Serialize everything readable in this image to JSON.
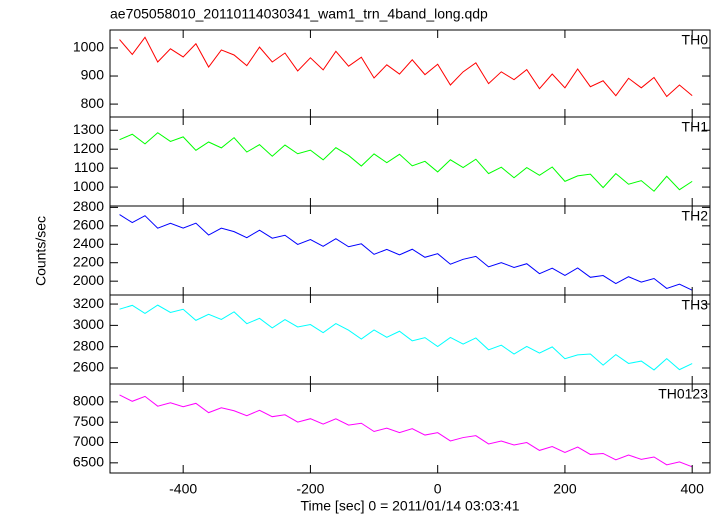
{
  "chart_data": [
    {
      "type": "line",
      "title": "ae705058010_20110114030341_wam1_trn_4band_long.qdp",
      "x": [
        -500,
        -480,
        -460,
        -440,
        -420,
        -400,
        -380,
        -360,
        -340,
        -320,
        -300,
        -280,
        -260,
        -240,
        -220,
        -200,
        -180,
        -160,
        -140,
        -120,
        -100,
        -80,
        -60,
        -40,
        -20,
        0,
        20,
        40,
        60,
        80,
        100,
        120,
        140,
        160,
        180,
        200,
        220,
        240,
        260,
        280,
        300,
        320,
        340,
        360,
        380,
        400
      ],
      "series": [
        {
          "name": "TH0",
          "color": "#ff0000",
          "values": [
            1030,
            977,
            1038,
            950,
            997,
            968,
            1015,
            932,
            993,
            975,
            937,
            1003,
            950,
            982,
            918,
            965,
            922,
            988,
            935,
            967,
            893,
            940,
            907,
            958,
            905,
            942,
            868,
            915,
            947,
            873,
            915,
            887,
            923,
            855,
            907,
            858,
            925,
            862,
            883,
            830,
            892,
            858,
            895,
            827,
            868,
            830
          ]
        }
      ],
      "xlim": [
        -515,
        428
      ],
      "xticks": [
        -400,
        -200,
        0,
        200,
        400
      ],
      "ylim": [
        754,
        1064
      ],
      "yticks": [
        800,
        900,
        1000
      ]
    },
    {
      "type": "line",
      "x": [
        -500,
        -480,
        -460,
        -440,
        -420,
        -400,
        -380,
        -360,
        -340,
        -320,
        -300,
        -280,
        -260,
        -240,
        -220,
        -200,
        -180,
        -160,
        -140,
        -120,
        -100,
        -80,
        -60,
        -40,
        -20,
        0,
        20,
        40,
        60,
        80,
        100,
        120,
        140,
        160,
        180,
        200,
        220,
        240,
        260,
        280,
        300,
        320,
        340,
        360,
        380,
        400
      ],
      "series": [
        {
          "name": "TH1",
          "color": "#00ff00",
          "values": [
            1250,
            1279,
            1228,
            1287,
            1241,
            1265,
            1194,
            1238,
            1207,
            1261,
            1185,
            1224,
            1163,
            1222,
            1176,
            1195,
            1144,
            1208,
            1167,
            1111,
            1175,
            1129,
            1173,
            1112,
            1136,
            1080,
            1144,
            1103,
            1147,
            1071,
            1105,
            1049,
            1103,
            1062,
            1106,
            1030,
            1059,
            1068,
            997,
            1071,
            1015,
            1034,
            978,
            1057,
            986,
            1030
          ]
        }
      ],
      "xlim": [
        -515,
        428
      ],
      "xticks": [
        -400,
        -200,
        0,
        200,
        400
      ],
      "ylim": [
        900,
        1370
      ],
      "yticks": [
        1000,
        1100,
        1200,
        1300
      ]
    },
    {
      "type": "line",
      "ylabel": "Counts/sec",
      "x": [
        -500,
        -480,
        -460,
        -440,
        -420,
        -400,
        -380,
        -360,
        -340,
        -320,
        -300,
        -280,
        -260,
        -240,
        -220,
        -200,
        -180,
        -160,
        -140,
        -120,
        -100,
        -80,
        -60,
        -40,
        -20,
        0,
        20,
        40,
        60,
        80,
        100,
        120,
        140,
        160,
        180,
        200,
        220,
        240,
        260,
        280,
        300,
        320,
        340,
        360,
        380,
        400
      ],
      "series": [
        {
          "name": "TH2",
          "color": "#0000ff",
          "values": [
            2722,
            2635,
            2710,
            2574,
            2627,
            2576,
            2629,
            2500,
            2575,
            2537,
            2471,
            2553,
            2466,
            2498,
            2398,
            2451,
            2378,
            2460,
            2373,
            2405,
            2291,
            2344,
            2285,
            2346,
            2259,
            2298,
            2184,
            2237,
            2269,
            2155,
            2201,
            2149,
            2189,
            2081,
            2141,
            2062,
            2143,
            2042,
            2061,
            1974,
            2048,
            1990,
            2029,
            1921,
            1968,
            1902
          ]
        }
      ],
      "xlim": [
        -515,
        428
      ],
      "xticks": [
        -400,
        -200,
        0,
        200,
        400
      ],
      "ylim": [
        1850,
        2815
      ],
      "yticks": [
        2000,
        2200,
        2400,
        2600,
        2800
      ]
    },
    {
      "type": "line",
      "x": [
        -500,
        -480,
        -460,
        -440,
        -420,
        -400,
        -380,
        -360,
        -340,
        -320,
        -300,
        -280,
        -260,
        -240,
        -220,
        -200,
        -180,
        -160,
        -140,
        -120,
        -100,
        -80,
        -60,
        -40,
        -20,
        0,
        20,
        40,
        60,
        80,
        100,
        120,
        140,
        160,
        180,
        200,
        220,
        240,
        260,
        280,
        300,
        320,
        340,
        360,
        380,
        400
      ],
      "series": [
        {
          "name": "TH3",
          "color": "#00ffff",
          "values": [
            3152,
            3188,
            3112,
            3190,
            3121,
            3151,
            3047,
            3104,
            3056,
            3127,
            3016,
            3066,
            2976,
            3054,
            2985,
            3008,
            2932,
            3017,
            2955,
            2872,
            2957,
            2888,
            2945,
            2855,
            2885,
            2802,
            2887,
            2825,
            2882,
            2771,
            2814,
            2731,
            2802,
            2740,
            2798,
            2687,
            2723,
            2731,
            2627,
            2726,
            2643,
            2665,
            2582,
            2688,
            2585,
            2642
          ]
        }
      ],
      "xlim": [
        -515,
        428
      ],
      "xticks": [
        -400,
        -200,
        0,
        200,
        400
      ],
      "ylim": [
        2450,
        3285
      ],
      "yticks": [
        2600,
        2800,
        3000,
        3200
      ]
    },
    {
      "type": "line",
      "xlabel": "Time [sec] 0 = 2011/01/14 03:03:41",
      "x": [
        -500,
        -480,
        -460,
        -440,
        -420,
        -400,
        -380,
        -360,
        -340,
        -320,
        -300,
        -280,
        -260,
        -240,
        -220,
        -200,
        -180,
        -160,
        -140,
        -120,
        -100,
        -80,
        -60,
        -40,
        -20,
        0,
        20,
        40,
        60,
        80,
        100,
        120,
        140,
        160,
        180,
        200,
        220,
        240,
        260,
        280,
        300,
        320,
        340,
        360,
        380,
        400
      ],
      "series": [
        {
          "name": "TH0123",
          "color": "#ff00ff",
          "values": [
            8172,
            8015,
            8135,
            7894,
            7977,
            7881,
            7964,
            7735,
            7855,
            7782,
            7661,
            7793,
            7636,
            7683,
            7503,
            7586,
            7453,
            7585,
            7428,
            7475,
            7271,
            7354,
            7245,
            7341,
            7184,
            7243,
            7039,
            7122,
            7169,
            6965,
            7036,
            6939,
            6999,
            6806,
            6901,
            6757,
            6888,
            6707,
            6731,
            6574,
            6693,
            6585,
            6644,
            6451,
            6523,
            6402
          ]
        }
      ],
      "xlim": [
        -515,
        428
      ],
      "xticks": [
        -400,
        -200,
        0,
        200,
        400
      ],
      "ylim": [
        6250,
        8440
      ],
      "yticks": [
        6500,
        7000,
        7500,
        8000
      ]
    }
  ]
}
